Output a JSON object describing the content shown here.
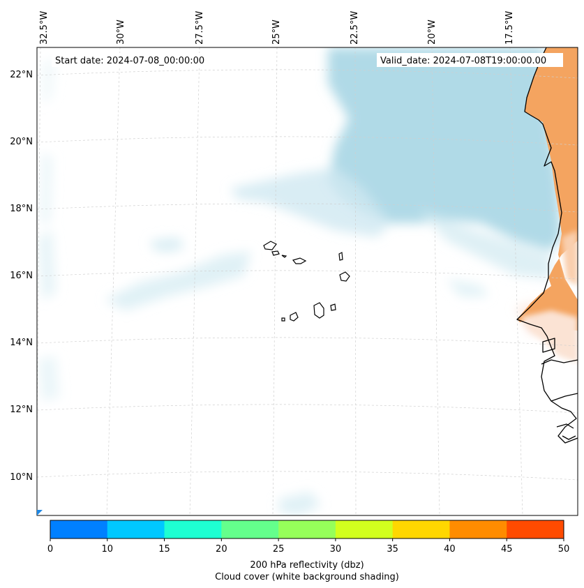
{
  "map": {
    "title_left": "Start date: 2024-07-08_00:00:00",
    "title_right": "Valid_date: 2024-07-08T19:00:00.00",
    "lon_labels": [
      "32.5°W",
      "30°W",
      "27.5°W",
      "25°W",
      "22.5°W",
      "20°W",
      "17.5°W"
    ],
    "lat_labels": [
      "22°N",
      "20°N",
      "18°N",
      "16°N",
      "14°N",
      "12°N",
      "10°N"
    ],
    "region": "Cape Verde Islands and West African coast (Senegal, Mauritania)"
  },
  "colorbar": {
    "ticks": [
      "0",
      "10",
      "15",
      "20",
      "25",
      "30",
      "35",
      "40",
      "45",
      "50"
    ],
    "colors": [
      "#0080ff",
      "#00c8ff",
      "#1effd2",
      "#64ff8c",
      "#96ff5a",
      "#d2ff1e",
      "#ffd700",
      "#ff8c00",
      "#ff4b00"
    ],
    "label_line1": "200 hPa reflectivity (dbz)",
    "label_line2": "Cloud cover (white background shading)"
  },
  "shading": {
    "cloud_color": "#acd8e6",
    "land_color": "#f4a460"
  }
}
